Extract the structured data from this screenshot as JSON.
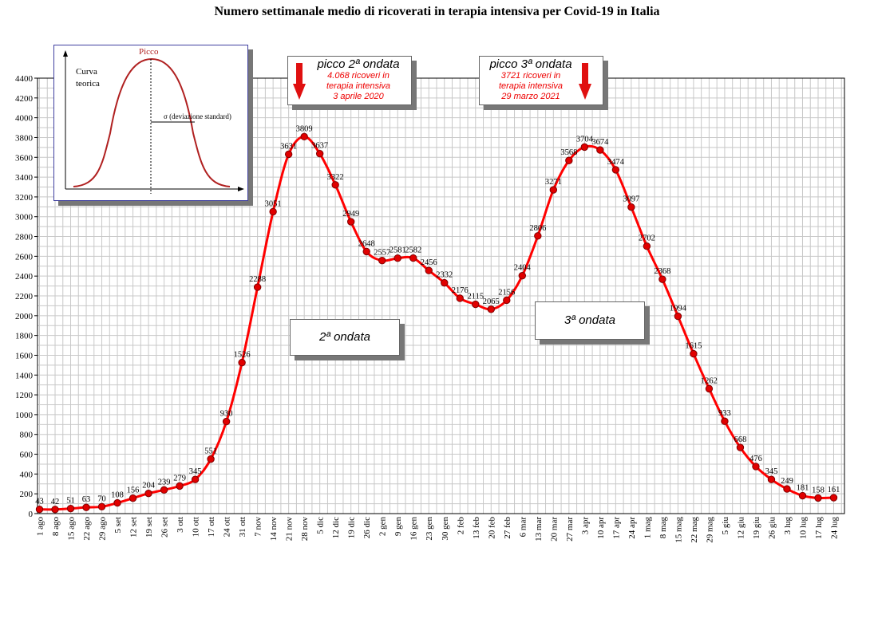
{
  "chart_data": {
    "type": "line",
    "title": "Numero settimanale medio di ricoverati in terapia intensiva per Covid-19 in Italia",
    "categories": [
      "1 ago",
      "8 ago",
      "15 ago",
      "22 ago",
      "29 ago",
      "5 set",
      "12 set",
      "19 set",
      "26 set",
      "3 ott",
      "10 ott",
      "17 ott",
      "24 ott",
      "31 ott",
      "7 nov",
      "14 nov",
      "21 nov",
      "28 nov",
      "5 dic",
      "12 dic",
      "19 dic",
      "26 dic",
      "2 gen",
      "9 gen",
      "16 gen",
      "23 gen",
      "30 gen",
      "2 feb",
      "13 feb",
      "20 feb",
      "27 feb",
      "6 mar",
      "13 mar",
      "20 mar",
      "27 mar",
      "3 apr",
      "10 apr",
      "17 apr",
      "24 apr",
      "1 mag",
      "8 mag",
      "15 mag",
      "22 mag",
      "29 mag",
      "5 giu",
      "12 giu",
      "19 giu",
      "26 giu",
      "3 lug",
      "10 lug",
      "17 lug",
      "24 lug"
    ],
    "values": [
      43,
      42,
      51,
      63,
      70,
      108,
      156,
      204,
      239,
      279,
      345,
      551,
      930,
      1526,
      2288,
      3051,
      3631,
      3809,
      3637,
      3322,
      2949,
      2648,
      2557,
      2581,
      2582,
      2456,
      2332,
      2176,
      2115,
      2065,
      2156,
      2404,
      2806,
      3271,
      3568,
      3704,
      3674,
      3474,
      3097,
      2702,
      2368,
      1994,
      1615,
      1262,
      933,
      668,
      476,
      345,
      249,
      181,
      158,
      161
    ],
    "value_labels": [
      "43",
      "42",
      "51",
      "63",
      "70",
      "108",
      "156",
      "204",
      "239",
      "279",
      "345",
      "551",
      "930",
      "1526",
      "2288",
      "3051",
      "3631",
      "3809",
      "3637",
      "3322",
      "2949",
      "2648",
      "2557",
      "2581",
      "2582",
      "2456",
      "2332",
      "2176",
      "2115",
      "2065",
      "2156",
      "2404",
      "2806",
      "3271",
      "3568",
      "3704",
      "3674",
      "3474",
      "3097",
      "2702",
      "2368",
      "1994",
      "1615",
      "1262",
      "933",
      "668",
      "476",
      "345",
      "249",
      "181",
      "158",
      "161"
    ],
    "ylim": [
      0,
      4400
    ],
    "yticks": [
      0,
      200,
      400,
      600,
      800,
      1000,
      1200,
      1400,
      1600,
      1800,
      2000,
      2200,
      2400,
      2600,
      2800,
      3000,
      3200,
      3400,
      3600,
      3800,
      4000,
      4200,
      4400
    ],
    "grid": true,
    "colors": {
      "line": "#ff0000",
      "marker_fill": "#e00000",
      "marker_edge": "#800000",
      "grid": "#c8c8c8"
    }
  },
  "inset": {
    "peak_label": "Picco",
    "curve_label_line1": "Curva",
    "curve_label_line2": "teorica",
    "sigma_label": "σ  (deviazione standard)"
  },
  "callouts": {
    "wave2": {
      "title": "picco 2ª ondata",
      "line1": "4.068 ricoveri in",
      "line2": "terapia intensiva",
      "line3": "3 aprile 2020"
    },
    "wave3": {
      "title": "picco 3ª ondata",
      "line1": "3721 ricoveri in",
      "line2": "terapia intensiva",
      "line3": "29 marzo 2021"
    }
  },
  "wave_labels": {
    "wave2": "2ª ondata",
    "wave3": "3ª ondata"
  }
}
